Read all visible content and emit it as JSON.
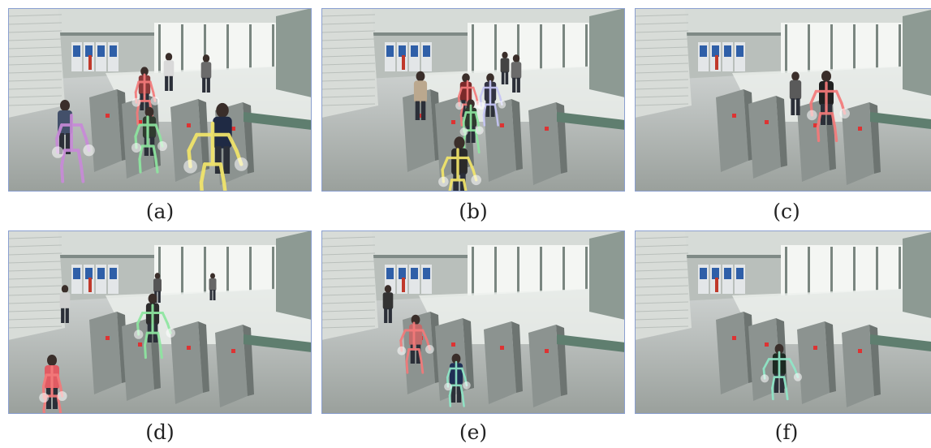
{
  "panels": [
    {
      "id": "a",
      "caption": "(a)"
    },
    {
      "id": "b",
      "caption": "(b)"
    },
    {
      "id": "c",
      "caption": "(c)"
    },
    {
      "id": "d",
      "caption": "(d)"
    },
    {
      "id": "e",
      "caption": "(e)"
    },
    {
      "id": "f",
      "caption": "(f)"
    }
  ],
  "skeleton_colors": {
    "purple": "#c88ad8",
    "salmon": "#f47a7a",
    "green": "#8ee6a0",
    "yellow": "#f3e66a",
    "lavender": "#c6c6f6",
    "mint": "#8fe8c8"
  }
}
